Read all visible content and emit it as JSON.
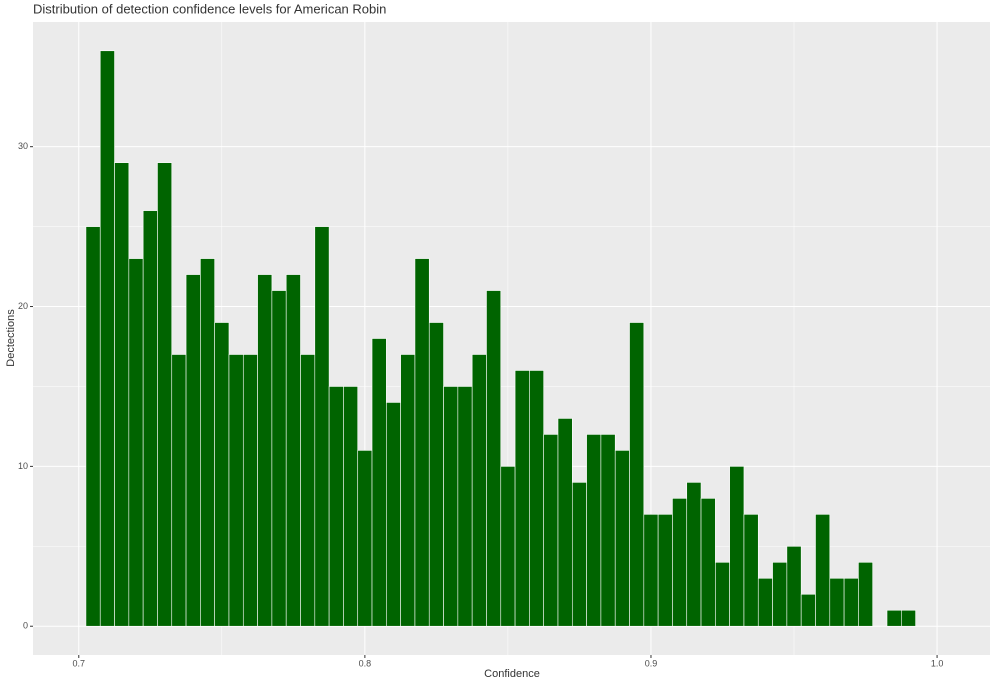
{
  "chart_data": {
    "type": "histogram",
    "title": "Distribution of detection confidence levels for American Robin",
    "x_label": "Confidence",
    "y_label": "Dectections",
    "bins": [
      0.7025,
      0.7075,
      0.7125,
      0.7175,
      0.7225,
      0.7275,
      0.7325,
      0.7375,
      0.7425,
      0.7475,
      0.7525,
      0.7575,
      0.7625,
      0.7675,
      0.7725,
      0.7775,
      0.7825,
      0.7875,
      0.7925,
      0.7975,
      0.8025,
      0.8075,
      0.8125,
      0.8175,
      0.8225,
      0.8275,
      0.8325,
      0.8375,
      0.8425,
      0.8475,
      0.8525,
      0.8575,
      0.8625,
      0.8675,
      0.8725,
      0.8775,
      0.8825,
      0.8875,
      0.8925,
      0.8975,
      0.9025,
      0.9075,
      0.9125,
      0.9175,
      0.9225,
      0.9275,
      0.9325,
      0.9375,
      0.9425,
      0.9475,
      0.9525,
      0.9575,
      0.9625,
      0.9675,
      0.9725,
      0.9775,
      0.9825,
      0.9875,
      0.9925
    ],
    "values": [
      25,
      36,
      29,
      23,
      26,
      29,
      17,
      22,
      23,
      19,
      17,
      17,
      22,
      21,
      22,
      17,
      25,
      15,
      15,
      11,
      18,
      14,
      17,
      23,
      19,
      15,
      15,
      17,
      21,
      10,
      16,
      16,
      12,
      13,
      9,
      12,
      12,
      11,
      19,
      7,
      7,
      8,
      9,
      8,
      4,
      10,
      7,
      3,
      4,
      5,
      2,
      7,
      3,
      3,
      4,
      0,
      1,
      1
    ],
    "color": "#006400",
    "xlim": [
      0.684,
      1.0185
    ],
    "ylim": [
      -1.8,
      37.8
    ],
    "xticks": [
      0.7,
      0.8,
      0.9,
      {
        "value": 1.0,
        "label": "1.0"
      }
    ],
    "yticks": [
      0,
      10,
      20,
      30
    ],
    "grid": true
  }
}
